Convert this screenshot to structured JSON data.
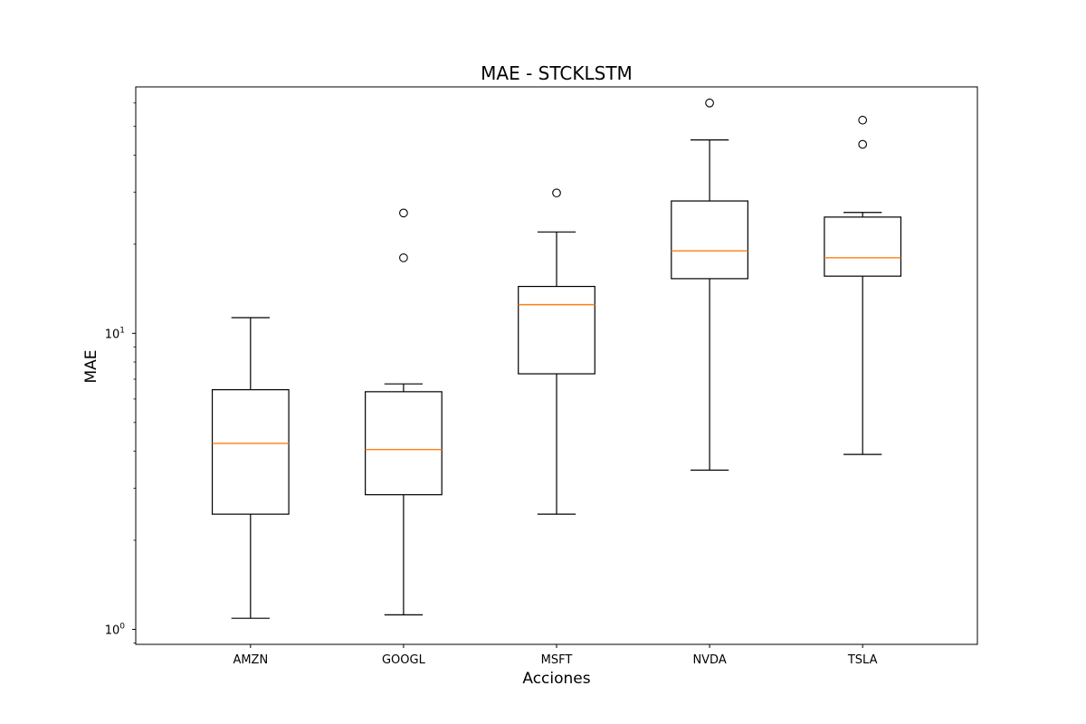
{
  "chart_data": {
    "type": "boxplot",
    "title": "MAE - STCKLSTM",
    "xlabel": "Acciones",
    "ylabel": "MAE",
    "yscale": "log",
    "ylim": [
      0.89,
      68
    ],
    "yticks": [
      {
        "value": 1,
        "base": "10",
        "exp": "0"
      },
      {
        "value": 10,
        "base": "10",
        "exp": "1"
      }
    ],
    "grid": false,
    "median_color": "#ff7f0e",
    "box_color": "#000000",
    "categories": [
      "AMZN",
      "GOOGL",
      "MSFT",
      "NVDA",
      "TSLA"
    ],
    "boxes": [
      {
        "name": "AMZN",
        "whisker_low": 1.09,
        "q1": 2.45,
        "median": 4.25,
        "q3": 6.45,
        "whisker_high": 11.3,
        "outliers": []
      },
      {
        "name": "GOOGL",
        "whisker_low": 1.12,
        "q1": 2.85,
        "median": 4.05,
        "q3": 6.35,
        "whisker_high": 6.75,
        "outliers": [
          18.0,
          25.5
        ]
      },
      {
        "name": "MSFT",
        "whisker_low": 2.45,
        "q1": 7.3,
        "median": 12.5,
        "q3": 14.4,
        "whisker_high": 22.0,
        "outliers": [
          29.8
        ]
      },
      {
        "name": "NVDA",
        "whisker_low": 3.45,
        "q1": 15.3,
        "median": 19.0,
        "q3": 28.0,
        "whisker_high": 45.0,
        "outliers": [
          60.0
        ]
      },
      {
        "name": "TSLA",
        "whisker_low": 3.9,
        "q1": 15.6,
        "median": 18.0,
        "q3": 24.7,
        "whisker_high": 25.6,
        "outliers": [
          43.5,
          52.5
        ]
      }
    ]
  }
}
